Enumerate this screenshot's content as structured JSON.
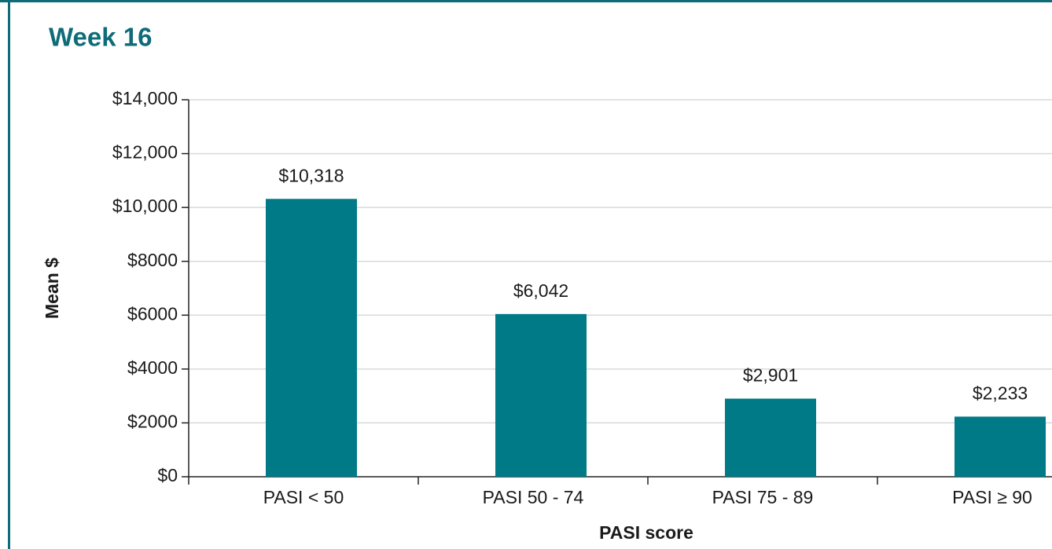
{
  "chart_data": {
    "type": "bar",
    "title": "Week 16",
    "xlabel": "PASI score",
    "ylabel": "Mean $",
    "categories": [
      "PASI < 50",
      "PASI 50 - 74",
      "PASI 75 - 89",
      "PASI ≥ 90"
    ],
    "values": [
      10318,
      6042,
      2901,
      2233
    ],
    "value_labels": [
      "$10,318",
      "$6,042",
      "$2,901",
      "$2,233"
    ],
    "color": "#007a87",
    "ylim": [
      0,
      14000
    ],
    "yticks": [
      {
        "value": 0,
        "label": "$0"
      },
      {
        "value": 2000,
        "label": "$2000"
      },
      {
        "value": 4000,
        "label": "$4000"
      },
      {
        "value": 6000,
        "label": "$6000"
      },
      {
        "value": 8000,
        "label": "$8000"
      },
      {
        "value": 10000,
        "label": "$10,000"
      },
      {
        "value": 12000,
        "label": "$12,000"
      },
      {
        "value": 14000,
        "label": "$14,000"
      }
    ],
    "grid": true
  }
}
